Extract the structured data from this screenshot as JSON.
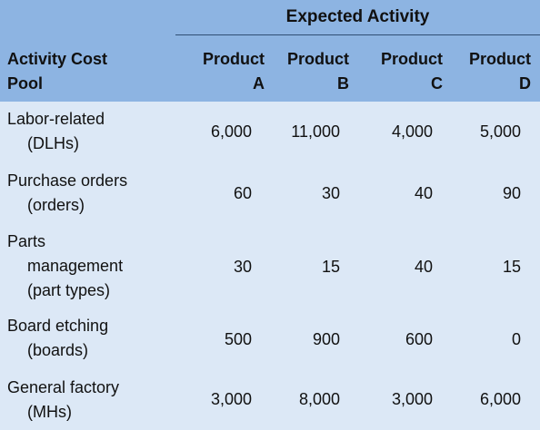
{
  "table": {
    "group_header": "Expected Activity",
    "pool_header": [
      "Activity Cost",
      "Pool"
    ],
    "products": [
      {
        "line1": "Product",
        "line2": "A"
      },
      {
        "line1": "Product",
        "line2": "B"
      },
      {
        "line1": "Product",
        "line2": "C"
      },
      {
        "line1": "Product",
        "line2": "D"
      }
    ],
    "rows": [
      {
        "label": [
          "Labor-related",
          "(DLHs)"
        ],
        "values": [
          "6,000",
          "11,000",
          "4,000",
          "5,000"
        ]
      },
      {
        "label": [
          "Purchase orders",
          "(orders)"
        ],
        "values": [
          "60",
          "30",
          "40",
          "90"
        ]
      },
      {
        "label": [
          "Parts",
          "management",
          "(part types)"
        ],
        "values": [
          "30",
          "15",
          "40",
          "15"
        ]
      },
      {
        "label": [
          "Board etching",
          "(boards)"
        ],
        "values": [
          "500",
          "900",
          "600",
          "0"
        ]
      },
      {
        "label": [
          "General factory",
          "(MHs)"
        ],
        "values": [
          "3,000",
          "8,000",
          "3,000",
          "6,000"
        ]
      }
    ]
  },
  "colors": {
    "header_bg": "#8db4e2",
    "body_bg": "#dce8f6"
  }
}
